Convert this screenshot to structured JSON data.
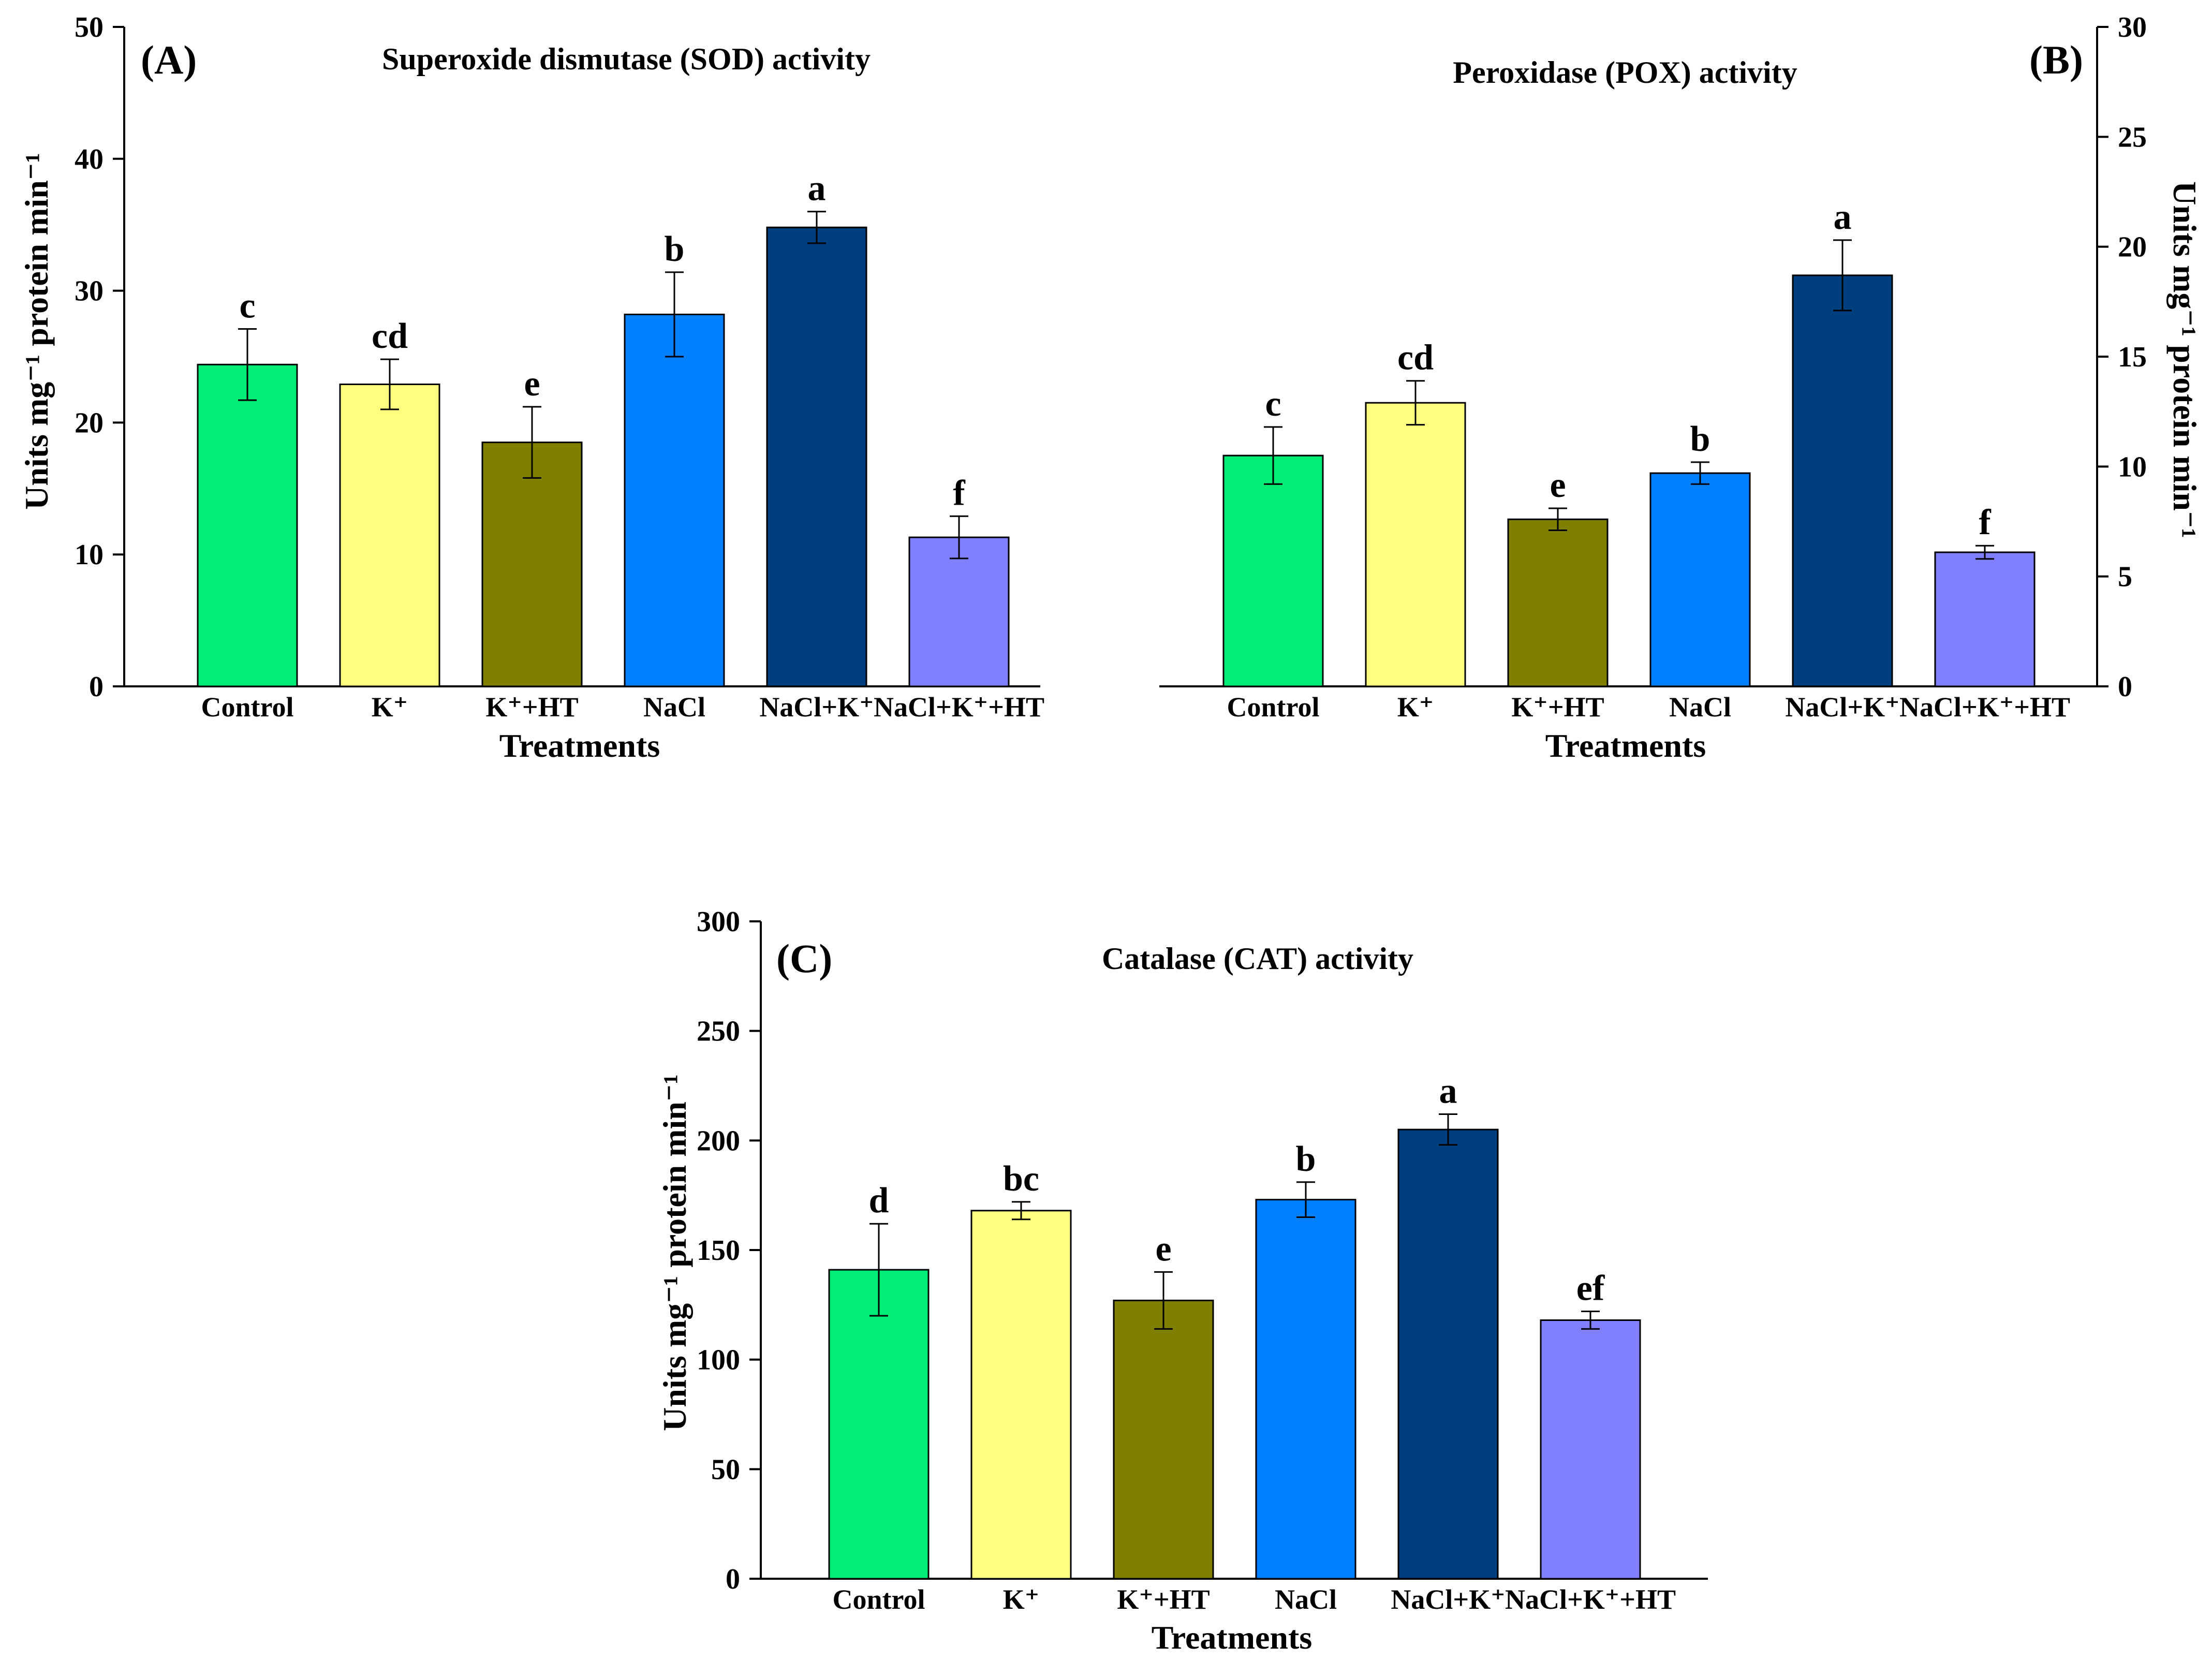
{
  "chart_data": [
    {
      "type": "bar",
      "panel": "(A)",
      "title": "Superoxide dismutase (SOD) activity",
      "xlabel": "Treatments",
      "ylabel": "Units mg⁻¹ protein min⁻¹",
      "ylim": [
        0,
        50
      ],
      "yticks": [
        0,
        10,
        20,
        30,
        40,
        50
      ],
      "y_axis_side": "left",
      "categories": [
        "Control",
        "K⁺",
        "K⁺+HT",
        "NaCl",
        "NaCl+K⁺",
        "NaCl+K⁺+HT"
      ],
      "values": [
        24.4,
        22.9,
        18.5,
        28.2,
        34.8,
        11.3
      ],
      "errors": [
        2.7,
        1.9,
        2.7,
        3.2,
        1.2,
        1.6
      ],
      "letters": [
        "c",
        "cd",
        "e",
        "b",
        "a",
        "f"
      ],
      "colors": [
        "#00ee76",
        "#ffff80",
        "#808000",
        "#0080ff",
        "#003f7f",
        "#8080ff"
      ]
    },
    {
      "type": "bar",
      "panel": "(B)",
      "title": "Peroxidase (POX) activity",
      "xlabel": "Treatments",
      "ylabel": "Units mg⁻¹ protein min⁻¹",
      "ylim": [
        0,
        30
      ],
      "yticks": [
        0,
        5,
        10,
        15,
        20,
        25,
        30
      ],
      "y_axis_side": "right",
      "categories": [
        "Control",
        "K⁺",
        "K⁺+HT",
        "NaCl",
        "NaCl+K⁺",
        "NaCl+K⁺+HT"
      ],
      "values": [
        10.5,
        12.9,
        7.6,
        9.7,
        18.7,
        6.1
      ],
      "errors": [
        1.3,
        1.0,
        0.5,
        0.5,
        1.6,
        0.3
      ],
      "letters": [
        "c",
        "cd",
        "e",
        "b",
        "a",
        "f"
      ],
      "colors": [
        "#00ee76",
        "#ffff80",
        "#808000",
        "#0080ff",
        "#003f7f",
        "#8080ff"
      ]
    },
    {
      "type": "bar",
      "panel": "(C)",
      "title": "Catalase (CAT) activity",
      "xlabel": "Treatments",
      "ylabel": "Units mg⁻¹ protein min⁻¹",
      "ylim": [
        0,
        300
      ],
      "yticks": [
        0,
        50,
        100,
        150,
        200,
        250,
        300
      ],
      "y_axis_side": "left",
      "categories": [
        "Control",
        "K⁺",
        "K⁺+HT",
        "NaCl",
        "NaCl+K⁺",
        "NaCl+K⁺+HT"
      ],
      "values": [
        141,
        168,
        127,
        173,
        205,
        118
      ],
      "errors": [
        21,
        4,
        13,
        8,
        7,
        4
      ],
      "letters": [
        "d",
        "bc",
        "e",
        "b",
        "a",
        "ef"
      ],
      "colors": [
        "#00ee76",
        "#ffff80",
        "#808000",
        "#0080ff",
        "#003f7f",
        "#8080ff"
      ]
    }
  ]
}
